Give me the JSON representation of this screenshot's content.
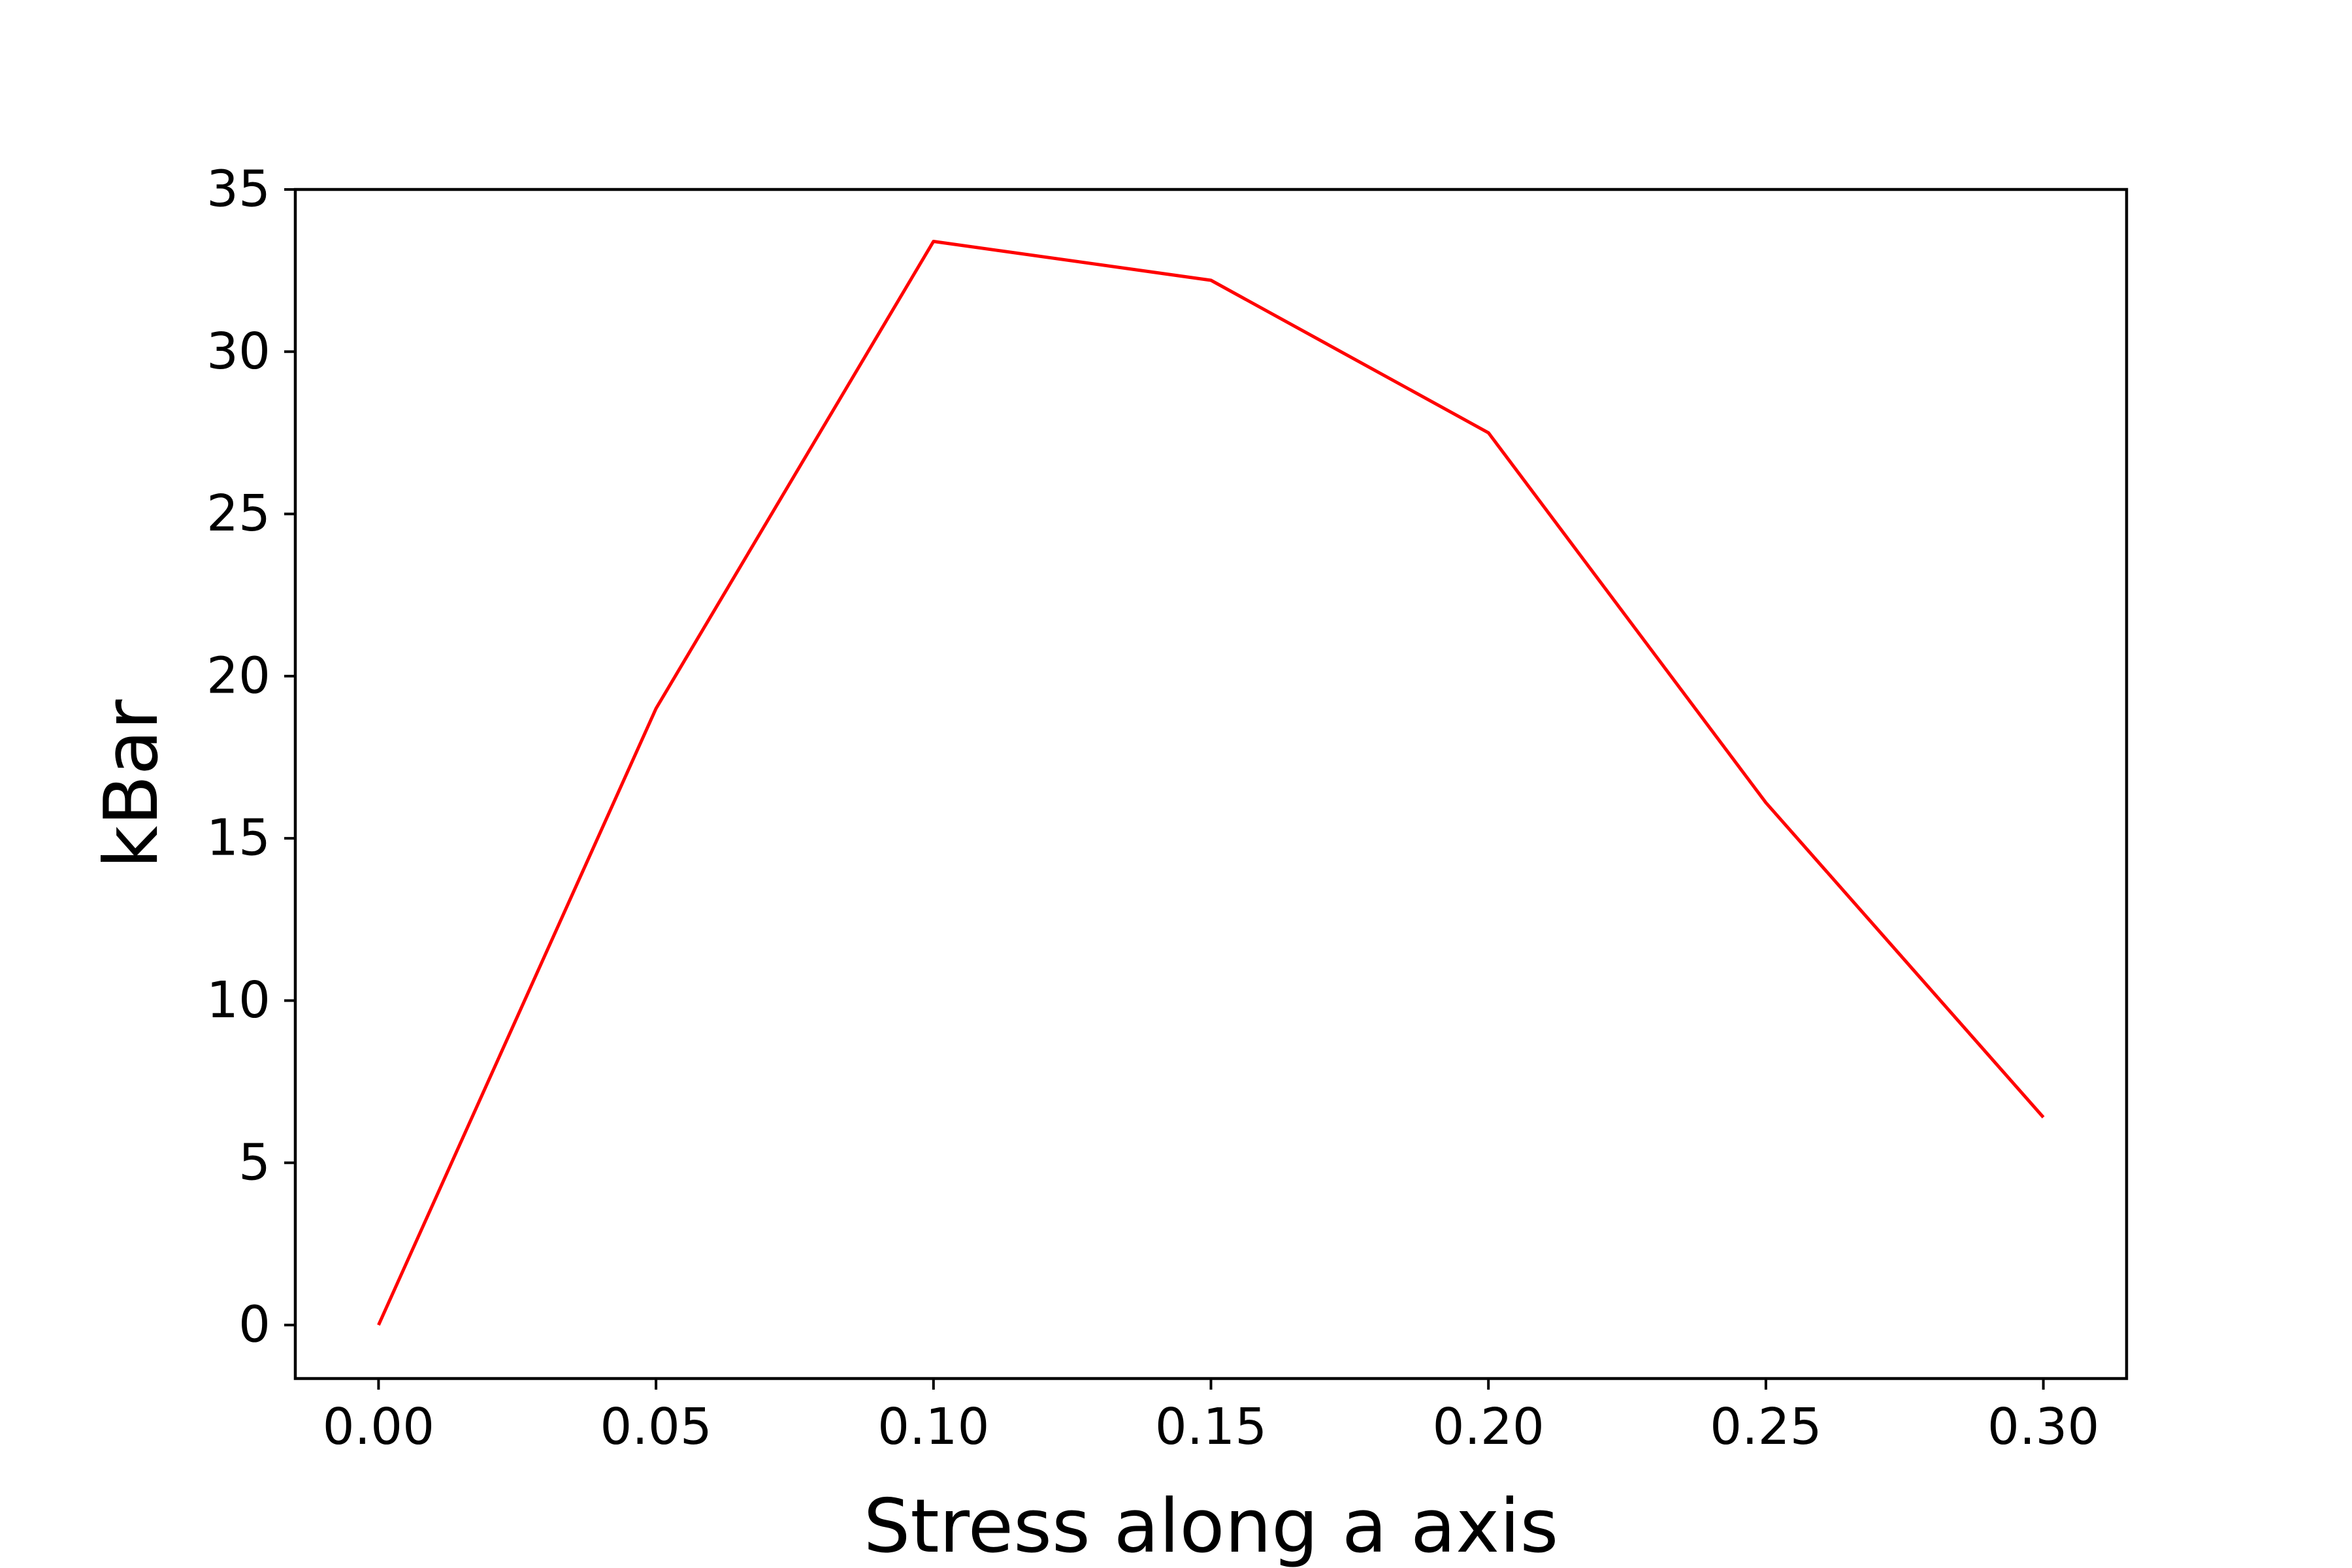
{
  "chart_data": {
    "type": "line",
    "title": "",
    "xlabel": "Stress along a axis",
    "ylabel": "kBar",
    "x": [
      0.0,
      0.05,
      0.1,
      0.15,
      0.2,
      0.25,
      0.3
    ],
    "series": [
      {
        "values": [
          0.0,
          19.0,
          33.4,
          32.2,
          27.5,
          16.1,
          6.4
        ],
        "color": "#ff0000"
      }
    ],
    "xlim": [
      -0.015,
      0.315
    ],
    "ylim": [
      -1.65,
      35.0
    ],
    "xticks": [
      0.0,
      0.05,
      0.1,
      0.15,
      0.2,
      0.25,
      0.3
    ],
    "xtick_labels": [
      "0.00",
      "0.05",
      "0.10",
      "0.15",
      "0.20",
      "0.25",
      "0.30"
    ],
    "yticks": [
      0,
      5,
      10,
      15,
      20,
      25,
      30,
      35
    ],
    "ytick_labels": [
      "0",
      "5",
      "10",
      "15",
      "20",
      "25",
      "30",
      "35"
    ],
    "grid": false,
    "legend": "none"
  }
}
